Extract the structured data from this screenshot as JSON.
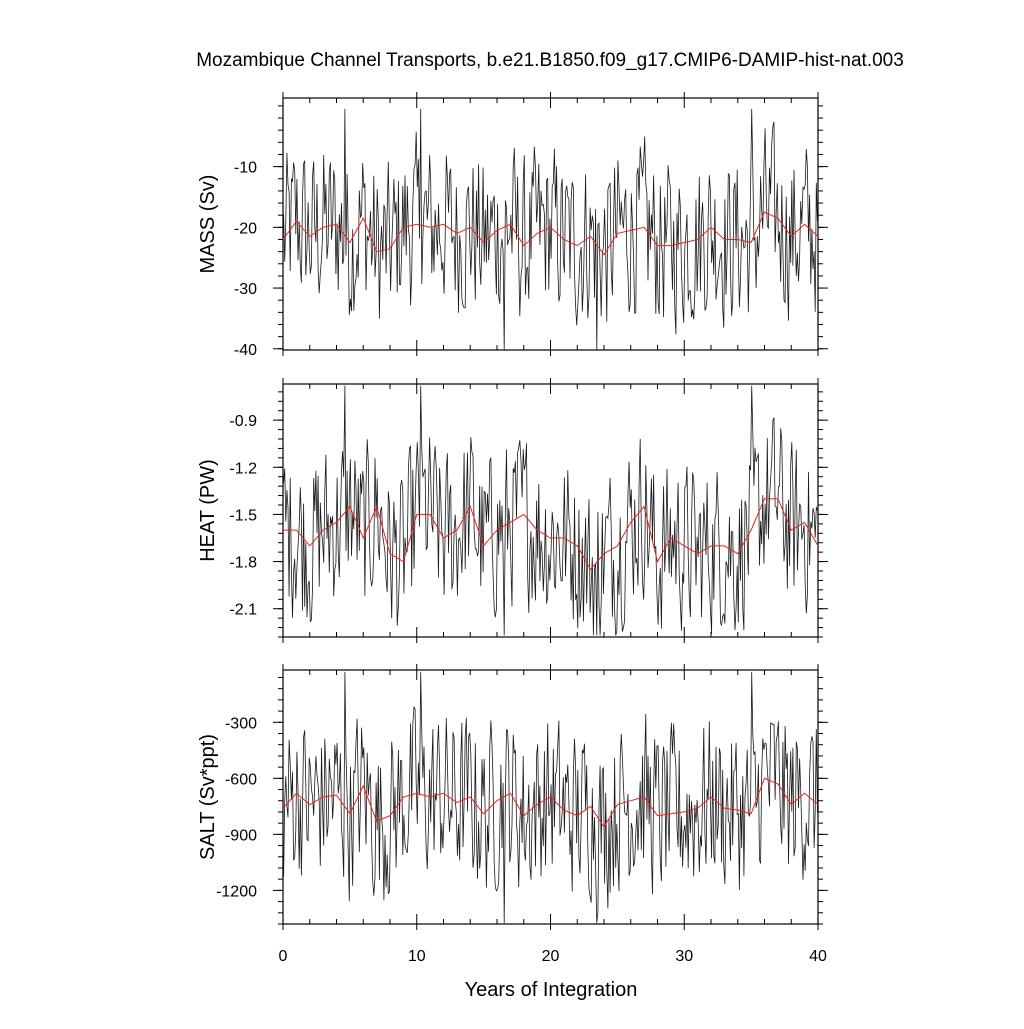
{
  "chart_data": {
    "type": "line",
    "title": "Mozambique Channel Transports, b.e21.B1850.f09_g17.CMIP6-DAMIP-hist-nat.003",
    "xlabel": "Years of Integration",
    "xlim": [
      0,
      40
    ],
    "xticks": [
      0,
      10,
      20,
      30,
      40
    ],
    "colors": {
      "monthly": "#1a1a1a",
      "annual": "#e8231f",
      "axes": "#000000"
    },
    "grid": false,
    "panels": [
      {
        "ylabel": "MASS (Sv)",
        "ylim": [
          -40.2,
          1.3
        ],
        "yticks": [
          -10,
          -20,
          -30,
          -40
        ],
        "annual_mean": [
          -22.0,
          -19.0,
          -21.5,
          -20.0,
          -19.5,
          -22.5,
          -18.5,
          -24.0,
          -23.5,
          -20.0,
          -19.5,
          -20.0,
          -19.5,
          -21.0,
          -20.0,
          -22.5,
          -20.5,
          -19.5,
          -23.0,
          -21.0,
          -20.0,
          -22.0,
          -23.0,
          -21.5,
          -24.5,
          -21.0,
          -20.5,
          -20.0,
          -23.0,
          -23.0,
          -22.5,
          -22.0,
          -20.0,
          -22.0,
          -22.0,
          -22.5,
          -17.5,
          -18.5,
          -21.5,
          -19.5,
          -21.5
        ],
        "monthly_range": [
          -40.2,
          -0.5
        ]
      },
      {
        "ylabel": "HEAT (PW)",
        "ylim": [
          -2.28,
          -0.67
        ],
        "yticks": [
          -0.9,
          -1.2,
          -1.5,
          -1.8,
          -2.1
        ],
        "annual_mean": [
          -1.6,
          -1.6,
          -1.7,
          -1.6,
          -1.55,
          -1.45,
          -1.65,
          -1.45,
          -1.75,
          -1.8,
          -1.5,
          -1.5,
          -1.65,
          -1.6,
          -1.45,
          -1.7,
          -1.6,
          -1.55,
          -1.5,
          -1.6,
          -1.65,
          -1.65,
          -1.7,
          -1.85,
          -1.75,
          -1.7,
          -1.55,
          -1.45,
          -1.8,
          -1.65,
          -1.7,
          -1.75,
          -1.7,
          -1.7,
          -1.75,
          -1.6,
          -1.4,
          -1.4,
          -1.6,
          -1.55,
          -1.7
        ],
        "monthly_range": [
          -2.27,
          -0.68
        ]
      },
      {
        "ylabel": "SALT (Sv*ppt)",
        "ylim": [
          -1380,
          -20
        ],
        "yticks": [
          -300,
          -600,
          -900,
          -1200
        ],
        "annual_mean": [
          -760,
          -680,
          -740,
          -700,
          -690,
          -790,
          -640,
          -830,
          -800,
          -700,
          -680,
          -700,
          -680,
          -730,
          -700,
          -790,
          -720,
          -680,
          -800,
          -740,
          -700,
          -770,
          -800,
          -750,
          -860,
          -740,
          -720,
          -700,
          -800,
          -790,
          -780,
          -760,
          -700,
          -760,
          -770,
          -790,
          -600,
          -630,
          -740,
          -680,
          -740
        ],
        "monthly_range": [
          -1375,
          -30
        ]
      }
    ]
  }
}
